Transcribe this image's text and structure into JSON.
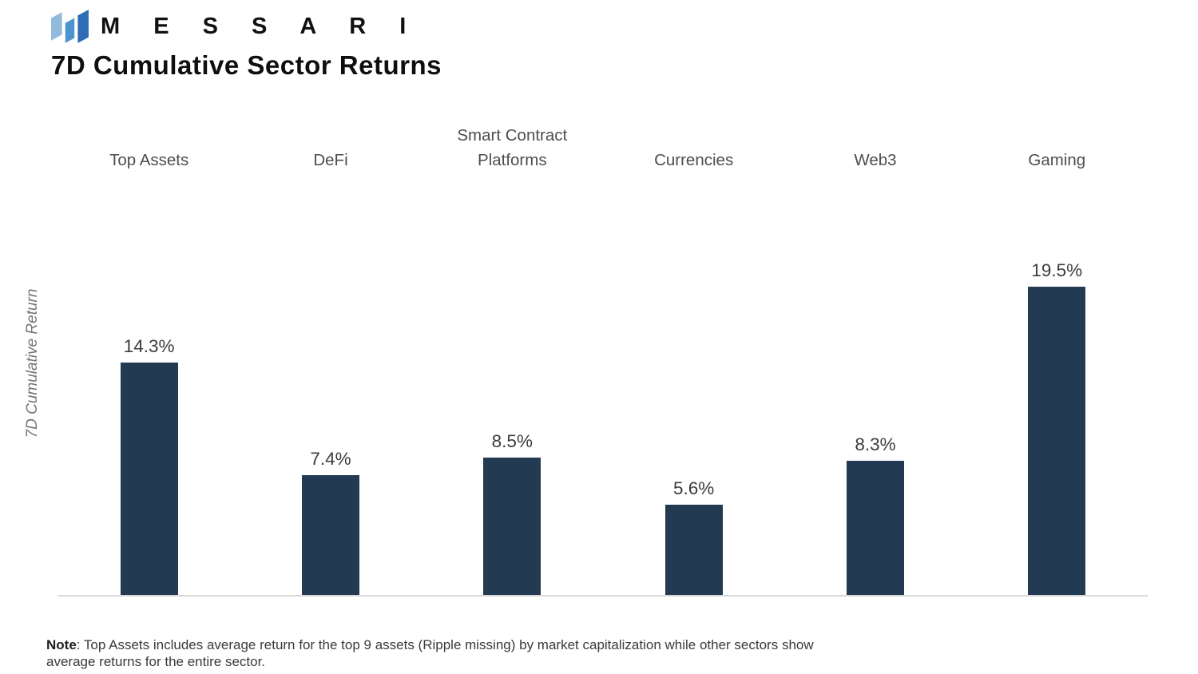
{
  "brand": {
    "name": "M E S S A R I",
    "logo_icon": "messari-logo-icon",
    "logo_colors": {
      "left": "#92badd",
      "middle": "#4d94ce",
      "right": "#2e6db5"
    }
  },
  "title": "7D Cumulative Sector Returns",
  "ylabel": "7D Cumulative Return",
  "note": {
    "prefix": "Note",
    "body": ": Top Assets includes average return for the top 9 assets (Ripple missing) by market capitalization while other sectors show average returns for the entire sector."
  },
  "colors": {
    "bar": "#223a52",
    "baseline": "#d9d9d9",
    "value_label": "#3c3c3c",
    "category_label": "#4d4d4d",
    "axis_label": "#757575"
  },
  "chart_data": {
    "type": "bar",
    "categories": [
      "Top Assets",
      "DeFi",
      "Smart Contract Platforms",
      "Currencies",
      "Web3",
      "Gaming"
    ],
    "values": [
      14.3,
      7.4,
      8.5,
      5.6,
      8.3,
      19.5
    ],
    "value_labels": [
      "14.3%",
      "7.4%",
      "8.5%",
      "5.6%",
      "8.3%",
      "19.5%"
    ],
    "title": "7D Cumulative Sector Returns",
    "xlabel": "",
    "ylabel": "7D Cumulative Return",
    "ylim": [
      0,
      25
    ],
    "grid": false,
    "legend": false,
    "bar_color": "#223a52",
    "data_labels_position": "above-bars"
  }
}
